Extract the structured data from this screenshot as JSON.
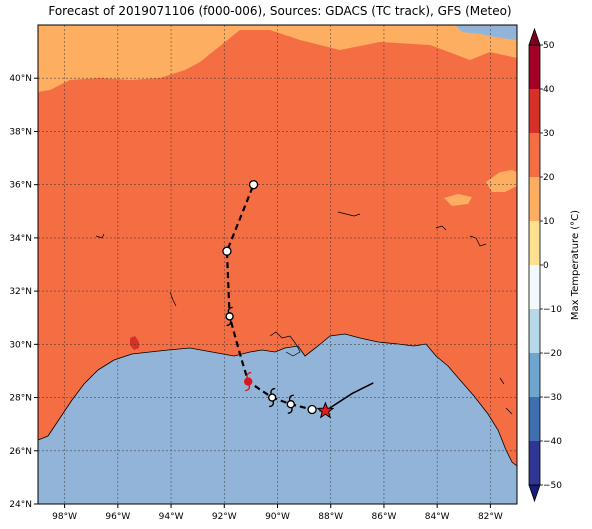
{
  "title": "Forecast of 2019071106 (f000-006), Sources: GDACS (TC track), GFS (Meteo)",
  "map": {
    "lon_range": [
      -99.0,
      -81.0
    ],
    "lat_range": [
      24.0,
      42.0
    ],
    "lon_ticks": [
      {
        "value": -98,
        "label": "98°W"
      },
      {
        "value": -96,
        "label": "96°W"
      },
      {
        "value": -94,
        "label": "94°W"
      },
      {
        "value": -92,
        "label": "92°W"
      },
      {
        "value": -90,
        "label": "90°W"
      },
      {
        "value": -88,
        "label": "88°W"
      },
      {
        "value": -86,
        "label": "86°W"
      },
      {
        "value": -84,
        "label": "84°W"
      },
      {
        "value": -82,
        "label": "82°W"
      }
    ],
    "lat_ticks": [
      {
        "value": 24,
        "label": "24°N"
      },
      {
        "value": 26,
        "label": "26°N"
      },
      {
        "value": 28,
        "label": "28°N"
      },
      {
        "value": 30,
        "label": "30°N"
      },
      {
        "value": 32,
        "label": "32°N"
      },
      {
        "value": 34,
        "label": "34°N"
      },
      {
        "value": 36,
        "label": "36°N"
      },
      {
        "value": 38,
        "label": "38°N"
      },
      {
        "value": 40,
        "label": "40°N"
      }
    ],
    "gridlines": true,
    "colors": {
      "land_fill": "#f46d43",
      "warm_fill": "#fdae61",
      "water_fill": "#92b4d8",
      "hot_fill": "#d73027"
    }
  },
  "track": {
    "past": [
      {
        "lon": -86.4,
        "lat": 28.55
      },
      {
        "lon": -87.2,
        "lat": 28.15
      },
      {
        "lon": -88.2,
        "lat": 27.5
      }
    ],
    "current": {
      "lon": -88.2,
      "lat": 27.5
    },
    "forecast": [
      {
        "lon": -88.2,
        "lat": 27.5,
        "marker": "star"
      },
      {
        "lon": -88.7,
        "lat": 27.55,
        "marker": "circle"
      },
      {
        "lon": -89.5,
        "lat": 27.75,
        "marker": "cyclone"
      },
      {
        "lon": -90.2,
        "lat": 28.0,
        "marker": "cyclone"
      },
      {
        "lon": -91.1,
        "lat": 28.6,
        "marker": "cyclone-red"
      },
      {
        "lon": -91.4,
        "lat": 29.6,
        "marker": "none"
      },
      {
        "lon": -91.8,
        "lat": 31.05,
        "marker": "cyclone"
      },
      {
        "lon": -91.9,
        "lat": 33.5,
        "marker": "circle"
      },
      {
        "lon": -90.9,
        "lat": 36.0,
        "marker": "circle"
      }
    ]
  },
  "colorbar": {
    "title": "Max Temperature (°C)",
    "min": -50,
    "max": 50,
    "ticks": [
      {
        "value": 50,
        "label": "50"
      },
      {
        "value": 40,
        "label": "40"
      },
      {
        "value": 30,
        "label": "30"
      },
      {
        "value": 20,
        "label": "20"
      },
      {
        "value": 10,
        "label": "10"
      },
      {
        "value": 0,
        "label": "0"
      },
      {
        "value": -10,
        "label": "−10"
      },
      {
        "value": -20,
        "label": "−20"
      },
      {
        "value": -30,
        "label": "−30"
      },
      {
        "value": -40,
        "label": "−40"
      },
      {
        "value": -50,
        "label": "−50"
      }
    ],
    "bands": [
      {
        "from": 40,
        "to": 50,
        "color": "#a50026"
      },
      {
        "from": 30,
        "to": 40,
        "color": "#d73027"
      },
      {
        "from": 20,
        "to": 30,
        "color": "#f46d43"
      },
      {
        "from": 10,
        "to": 20,
        "color": "#fdae61"
      },
      {
        "from": 0,
        "to": 10,
        "color": "#fee090"
      },
      {
        "from": -10,
        "to": 0,
        "color": "#f2f8fb"
      },
      {
        "from": -20,
        "to": -10,
        "color": "#b6d8e8"
      },
      {
        "from": -30,
        "to": -20,
        "color": "#6ea6cf"
      },
      {
        "from": -40,
        "to": -30,
        "color": "#3f6fb0"
      },
      {
        "from": -50,
        "to": -40,
        "color": "#313695"
      }
    ],
    "over_color": "#800020",
    "under_color": "#1a1a7a"
  }
}
